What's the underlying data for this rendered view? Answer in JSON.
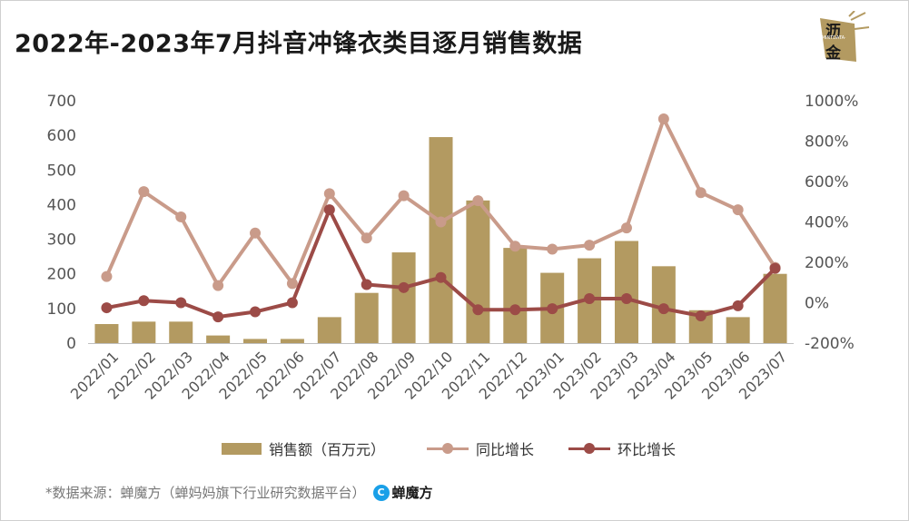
{
  "title": "2022年-2023年7月抖音冲锋衣类目逐月销售数据",
  "logo": {
    "line1": "沥",
    "line2": "金",
    "mark": "·MINTDATA·"
  },
  "footer": {
    "source": "*数据来源：蝉魔方（蝉妈妈旗下行业研究数据平台）",
    "brand_icon": "C",
    "brand": "蝉魔方"
  },
  "colors": {
    "bar": "#b39a61",
    "yoy": "#c99b8a",
    "mom": "#9c4b47",
    "grid": "#d9d9d9",
    "axis": "#bfbfbf"
  },
  "chart_data": {
    "type": "bar",
    "categories": [
      "2022/01",
      "2022/02",
      "2022/03",
      "2022/04",
      "2022/05",
      "2022/06",
      "2022/07",
      "2022/08",
      "2022/09",
      "2022/10",
      "2022/11",
      "2022/12",
      "2023/01",
      "2023/02",
      "2023/03",
      "2023/04",
      "2023/05",
      "2023/06",
      "2023/07"
    ],
    "series": [
      {
        "name": "销售额（百万元）",
        "type": "bar",
        "axis": "left",
        "values": [
          55,
          62,
          62,
          22,
          12,
          12,
          75,
          145,
          262,
          595,
          412,
          275,
          203,
          245,
          295,
          222,
          95,
          75,
          200
        ]
      },
      {
        "name": "同比增长",
        "type": "line",
        "axis": "right",
        "unit": "%",
        "values": [
          130,
          550,
          425,
          85,
          345,
          95,
          540,
          320,
          530,
          400,
          505,
          280,
          265,
          285,
          370,
          910,
          545,
          460,
          175
        ]
      },
      {
        "name": "环比增长",
        "type": "line",
        "axis": "right",
        "unit": "%",
        "values": [
          -25,
          10,
          0,
          -70,
          -45,
          0,
          460,
          90,
          75,
          125,
          -35,
          -35,
          -30,
          20,
          20,
          -30,
          -65,
          -15,
          170
        ]
      }
    ],
    "yaxis_left": {
      "min": 0,
      "max": 700,
      "ticks": [
        "0",
        "100",
        "200",
        "300",
        "400",
        "500",
        "600",
        "700"
      ]
    },
    "yaxis_right": {
      "min": -200,
      "max": 1000,
      "ticks": [
        "-200%",
        "0%",
        "200%",
        "400%",
        "600%",
        "800%",
        "1000%"
      ]
    },
    "legend": [
      "销售额（百万元）",
      "同比增长",
      "环比增长"
    ],
    "legend_position": "bottom",
    "grid": false
  }
}
